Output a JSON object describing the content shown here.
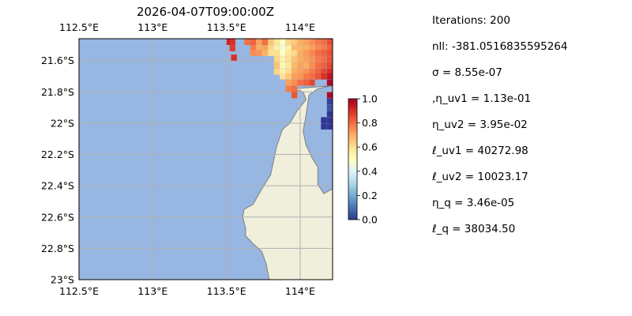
{
  "colors": {
    "ocean": "#97b6e1",
    "land": "#efefdb",
    "coast": "#7f7f7f",
    "grid": "#b0b0b0",
    "colormap": [
      "#313695",
      "#4575b4",
      "#74add1",
      "#abd9e9",
      "#e0f3f8",
      "#ffffbf",
      "#fee090",
      "#fdae61",
      "#f46d43",
      "#d73027",
      "#a50026"
    ]
  },
  "chart_data": {
    "type": "heatmap",
    "title": "2026-04-07T09:00:00Z",
    "projection": "PlateCarree",
    "extent": {
      "lon": [
        112.5,
        114.22
      ],
      "lat": [
        -23.0,
        -21.46
      ]
    },
    "xticks": [
      {
        "value": 112.5,
        "label": "112.5°E"
      },
      {
        "value": 113.0,
        "label": "113°E"
      },
      {
        "value": 113.5,
        "label": "113.5°E"
      },
      {
        "value": 114.0,
        "label": "114°E"
      }
    ],
    "yticks": [
      {
        "value": -21.6,
        "label": "21.6°S"
      },
      {
        "value": -21.8,
        "label": "21.8°S"
      },
      {
        "value": -22.0,
        "label": "22°S"
      },
      {
        "value": -22.2,
        "label": "22.2°S"
      },
      {
        "value": -22.4,
        "label": "22.4°S"
      },
      {
        "value": -22.6,
        "label": "22.6°S"
      },
      {
        "value": -22.8,
        "label": "22.8°S"
      },
      {
        "value": -23.0,
        "label": "23°S"
      }
    ],
    "grid": true,
    "colorbar": {
      "range": [
        0.0,
        1.0
      ],
      "ticks": [
        {
          "value": 0.0,
          "label": "0.0"
        },
        {
          "value": 0.2,
          "label": "0.2"
        },
        {
          "value": 0.4,
          "label": "0.4"
        },
        {
          "value": 0.6,
          "label": "0.6"
        },
        {
          "value": 0.8,
          "label": "0.8"
        },
        {
          "value": 1.0,
          "label": "1.0"
        }
      ]
    },
    "coastline": [
      [
        113.95,
        -21.78
      ],
      [
        114.02,
        -21.8
      ],
      [
        114.04,
        -21.85
      ],
      [
        113.98,
        -21.92
      ],
      [
        113.93,
        -22.0
      ],
      [
        113.88,
        -22.04
      ],
      [
        113.84,
        -22.15
      ],
      [
        113.8,
        -22.33
      ],
      [
        113.74,
        -22.42
      ],
      [
        113.68,
        -22.52
      ],
      [
        113.62,
        -22.55
      ],
      [
        113.61,
        -22.6
      ],
      [
        113.63,
        -22.67
      ],
      [
        113.63,
        -22.72
      ],
      [
        113.68,
        -22.77
      ],
      [
        113.74,
        -22.82
      ],
      [
        113.77,
        -22.9
      ],
      [
        113.79,
        -23.0
      ]
    ],
    "east_coast": [
      [
        114.22,
        -22.42
      ],
      [
        114.16,
        -22.45
      ],
      [
        114.12,
        -22.39
      ],
      [
        114.12,
        -22.28
      ],
      [
        114.08,
        -22.22
      ],
      [
        114.04,
        -22.14
      ],
      [
        114.02,
        -22.05
      ],
      [
        114.04,
        -21.95
      ],
      [
        114.06,
        -21.82
      ],
      [
        114.12,
        -21.78
      ],
      [
        114.22,
        -21.76
      ]
    ],
    "cells": {
      "dlon": 0.037,
      "dlat": 0.037,
      "values": [
        {
          "lon": 113.52,
          "lat": -21.48,
          "v": 0.93
        },
        {
          "lon": 113.54,
          "lat": -21.48,
          "v": 0.9
        },
        {
          "lon": 113.54,
          "lat": -21.52,
          "v": 0.88
        },
        {
          "lon": 113.55,
          "lat": -21.58,
          "v": 0.9
        },
        {
          "lon": 113.64,
          "lat": -21.48,
          "v": 0.8
        },
        {
          "lon": 113.68,
          "lat": -21.48,
          "v": 0.82
        },
        {
          "lon": 113.68,
          "lat": -21.52,
          "v": 0.78
        },
        {
          "lon": 113.68,
          "lat": -21.55,
          "v": 0.75
        },
        {
          "lon": 113.72,
          "lat": -21.48,
          "v": 0.72
        },
        {
          "lon": 113.72,
          "lat": -21.52,
          "v": 0.7
        },
        {
          "lon": 113.72,
          "lat": -21.55,
          "v": 0.74
        },
        {
          "lon": 113.76,
          "lat": -21.48,
          "v": 0.8
        },
        {
          "lon": 113.76,
          "lat": -21.52,
          "v": 0.72
        },
        {
          "lon": 113.76,
          "lat": -21.55,
          "v": 0.69
        },
        {
          "lon": 113.8,
          "lat": -21.48,
          "v": 0.66
        },
        {
          "lon": 113.8,
          "lat": -21.52,
          "v": 0.62
        },
        {
          "lon": 113.8,
          "lat": -21.55,
          "v": 0.6
        },
        {
          "lon": 113.84,
          "lat": -21.48,
          "v": 0.58
        },
        {
          "lon": 113.84,
          "lat": -21.52,
          "v": 0.55
        },
        {
          "lon": 113.84,
          "lat": -21.55,
          "v": 0.6
        },
        {
          "lon": 113.88,
          "lat": -21.48,
          "v": 0.5
        },
        {
          "lon": 113.88,
          "lat": -21.52,
          "v": 0.47
        },
        {
          "lon": 113.88,
          "lat": -21.55,
          "v": 0.5
        },
        {
          "lon": 113.92,
          "lat": -21.48,
          "v": 0.62
        },
        {
          "lon": 113.92,
          "lat": -21.52,
          "v": 0.55
        },
        {
          "lon": 113.92,
          "lat": -21.55,
          "v": 0.58
        },
        {
          "lon": 113.96,
          "lat": -21.48,
          "v": 0.65
        },
        {
          "lon": 113.96,
          "lat": -21.52,
          "v": 0.68
        },
        {
          "lon": 113.96,
          "lat": -21.55,
          "v": 0.62
        },
        {
          "lon": 114.0,
          "lat": -21.48,
          "v": 0.7
        },
        {
          "lon": 114.0,
          "lat": -21.52,
          "v": 0.68
        },
        {
          "lon": 114.0,
          "lat": -21.55,
          "v": 0.7
        },
        {
          "lon": 114.04,
          "lat": -21.48,
          "v": 0.72
        },
        {
          "lon": 114.04,
          "lat": -21.52,
          "v": 0.7
        },
        {
          "lon": 114.04,
          "lat": -21.55,
          "v": 0.73
        },
        {
          "lon": 114.08,
          "lat": -21.48,
          "v": 0.75
        },
        {
          "lon": 114.08,
          "lat": -21.52,
          "v": 0.72
        },
        {
          "lon": 114.08,
          "lat": -21.55,
          "v": 0.76
        },
        {
          "lon": 114.12,
          "lat": -21.48,
          "v": 0.78
        },
        {
          "lon": 114.12,
          "lat": -21.52,
          "v": 0.76
        },
        {
          "lon": 114.12,
          "lat": -21.55,
          "v": 0.8
        },
        {
          "lon": 114.16,
          "lat": -21.48,
          "v": 0.8
        },
        {
          "lon": 114.16,
          "lat": -21.52,
          "v": 0.78
        },
        {
          "lon": 114.16,
          "lat": -21.55,
          "v": 0.82
        },
        {
          "lon": 114.2,
          "lat": -21.48,
          "v": 0.85
        },
        {
          "lon": 114.2,
          "lat": -21.52,
          "v": 0.82
        },
        {
          "lon": 114.2,
          "lat": -21.55,
          "v": 0.85
        },
        {
          "lon": 113.84,
          "lat": -21.59,
          "v": 0.62
        },
        {
          "lon": 113.88,
          "lat": -21.59,
          "v": 0.55
        },
        {
          "lon": 113.92,
          "lat": -21.59,
          "v": 0.6
        },
        {
          "lon": 113.96,
          "lat": -21.59,
          "v": 0.66
        },
        {
          "lon": 114.0,
          "lat": -21.59,
          "v": 0.7
        },
        {
          "lon": 114.04,
          "lat": -21.59,
          "v": 0.72
        },
        {
          "lon": 114.08,
          "lat": -21.59,
          "v": 0.74
        },
        {
          "lon": 114.12,
          "lat": -21.59,
          "v": 0.78
        },
        {
          "lon": 114.16,
          "lat": -21.59,
          "v": 0.8
        },
        {
          "lon": 114.2,
          "lat": -21.59,
          "v": 0.84
        },
        {
          "lon": 113.84,
          "lat": -21.63,
          "v": 0.66
        },
        {
          "lon": 113.88,
          "lat": -21.63,
          "v": 0.52
        },
        {
          "lon": 113.92,
          "lat": -21.63,
          "v": 0.58
        },
        {
          "lon": 113.96,
          "lat": -21.63,
          "v": 0.68
        },
        {
          "lon": 114.0,
          "lat": -21.63,
          "v": 0.72
        },
        {
          "lon": 114.04,
          "lat": -21.63,
          "v": 0.7
        },
        {
          "lon": 114.08,
          "lat": -21.63,
          "v": 0.75
        },
        {
          "lon": 114.12,
          "lat": -21.63,
          "v": 0.8
        },
        {
          "lon": 114.16,
          "lat": -21.63,
          "v": 0.82
        },
        {
          "lon": 114.2,
          "lat": -21.63,
          "v": 0.86
        },
        {
          "lon": 113.84,
          "lat": -21.67,
          "v": 0.62
        },
        {
          "lon": 113.88,
          "lat": -21.67,
          "v": 0.55
        },
        {
          "lon": 113.92,
          "lat": -21.67,
          "v": 0.6
        },
        {
          "lon": 113.96,
          "lat": -21.67,
          "v": 0.7
        },
        {
          "lon": 114.0,
          "lat": -21.67,
          "v": 0.72
        },
        {
          "lon": 114.04,
          "lat": -21.67,
          "v": 0.74
        },
        {
          "lon": 114.08,
          "lat": -21.67,
          "v": 0.78
        },
        {
          "lon": 114.12,
          "lat": -21.67,
          "v": 0.82
        },
        {
          "lon": 114.16,
          "lat": -21.67,
          "v": 0.86
        },
        {
          "lon": 114.2,
          "lat": -21.67,
          "v": 0.9
        },
        {
          "lon": 113.88,
          "lat": -21.7,
          "v": 0.6
        },
        {
          "lon": 113.92,
          "lat": -21.7,
          "v": 0.65
        },
        {
          "lon": 113.96,
          "lat": -21.7,
          "v": 0.72
        },
        {
          "lon": 114.0,
          "lat": -21.7,
          "v": 0.74
        },
        {
          "lon": 114.04,
          "lat": -21.7,
          "v": 0.78
        },
        {
          "lon": 114.08,
          "lat": -21.7,
          "v": 0.8
        },
        {
          "lon": 114.12,
          "lat": -21.7,
          "v": 0.84
        },
        {
          "lon": 114.16,
          "lat": -21.7,
          "v": 0.9
        },
        {
          "lon": 114.2,
          "lat": -21.7,
          "v": 0.95
        },
        {
          "lon": 113.92,
          "lat": -21.74,
          "v": 0.72
        },
        {
          "lon": 113.96,
          "lat": -21.74,
          "v": 0.75
        },
        {
          "lon": 114.0,
          "lat": -21.74,
          "v": 0.8
        },
        {
          "lon": 114.04,
          "lat": -21.74,
          "v": 0.82
        },
        {
          "lon": 114.08,
          "lat": -21.74,
          "v": 0.86
        },
        {
          "lon": 114.2,
          "lat": -21.74,
          "v": 0.98
        },
        {
          "lon": 113.92,
          "lat": -21.78,
          "v": 0.78
        },
        {
          "lon": 113.96,
          "lat": -21.78,
          "v": 0.8
        },
        {
          "lon": 113.96,
          "lat": -21.82,
          "v": 0.84
        },
        {
          "lon": 114.2,
          "lat": -21.82,
          "v": 0.98
        },
        {
          "lon": 114.2,
          "lat": -21.86,
          "v": 0.02
        },
        {
          "lon": 114.2,
          "lat": -21.9,
          "v": 0.05
        },
        {
          "lon": 114.2,
          "lat": -21.94,
          "v": 0.0
        },
        {
          "lon": 114.16,
          "lat": -21.98,
          "v": 0.0
        },
        {
          "lon": 114.2,
          "lat": -21.98,
          "v": 0.0
        },
        {
          "lon": 114.16,
          "lat": -22.02,
          "v": 0.0
        },
        {
          "lon": 114.2,
          "lat": -22.02,
          "v": 0.0
        }
      ]
    }
  },
  "params": [
    "Iterations: 200",
    "nll: -381.0516835595264",
    "σ = 8.55e-07",
    ",η_uv1 = 1.13e-01",
    "η_uv2 = 3.95e-02",
    "ℓ_uv1 = 40272.98",
    "ℓ_uv2 = 10023.17",
    "η_q = 3.46e-05",
    "ℓ_q = 38034.50"
  ]
}
